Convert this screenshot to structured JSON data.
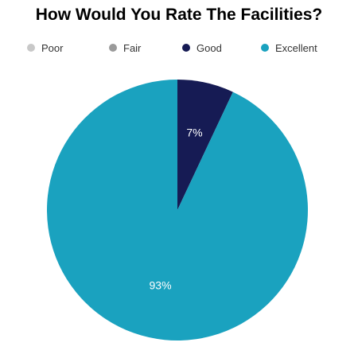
{
  "chart_data": {
    "type": "pie",
    "title": "How Would You Rate The Facilities?",
    "legend_position": "top",
    "categories": [
      "Poor",
      "Fair",
      "Good",
      "Excellent"
    ],
    "values": [
      0,
      0,
      7,
      93
    ],
    "value_labels": [
      "",
      "",
      "7%",
      "93%"
    ],
    "colors": [
      "#c8c8c8",
      "#9a9a9a",
      "#161b54",
      "#1aa2bf"
    ]
  }
}
